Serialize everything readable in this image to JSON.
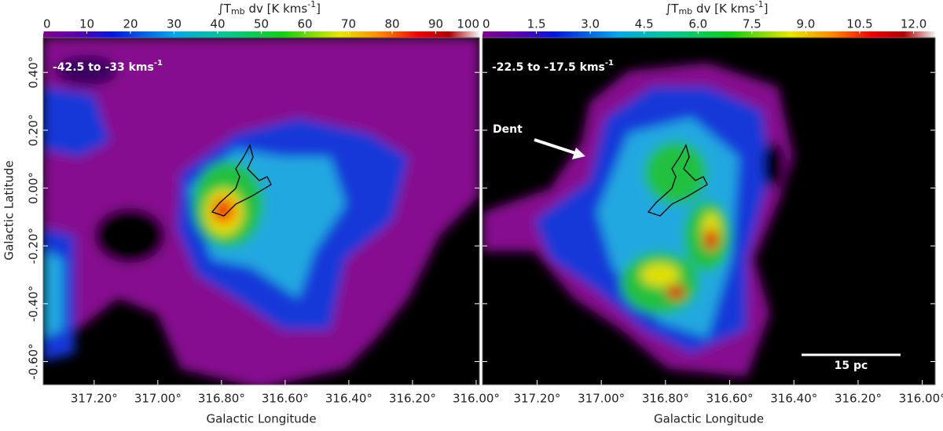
{
  "chart_data": [
    {
      "type": "heatmap",
      "xlabel": "Galactic Longitude",
      "ylabel": "Galactic Latitude",
      "xlim": [
        317.36,
        315.99
      ],
      "xticks": [
        {
          "value": 317.2,
          "label": "317.20°"
        },
        {
          "value": 317.0,
          "label": "317.00°"
        },
        {
          "value": 316.8,
          "label": "316.80°"
        },
        {
          "value": 316.6,
          "label": "316.60°"
        },
        {
          "value": 316.4,
          "label": "316.40°"
        },
        {
          "value": 316.2,
          "label": "316.20°"
        },
        {
          "value": 316.0,
          "label": "316.00°"
        }
      ],
      "ylim": [
        -0.68,
        0.52
      ],
      "yticks": [
        {
          "value": 0.4,
          "label": "0.40°"
        },
        {
          "value": 0.2,
          "label": "0.20°"
        },
        {
          "value": 0.0,
          "label": "0.00°"
        },
        {
          "value": -0.2,
          "label": "-0.20°"
        },
        {
          "value": -0.4,
          "label": "-0.40°"
        },
        {
          "value": -0.6,
          "label": "-0.60°"
        }
      ],
      "colorbar": {
        "label": {
          "base": "∫T",
          "sub": "mb",
          "text": " dv [K kms",
          "sup": "-1",
          "end": "]"
        },
        "lim": [
          0,
          100
        ],
        "ticks": [
          0,
          10,
          20,
          30,
          40,
          50,
          60,
          70,
          80,
          90,
          100
        ]
      },
      "annotation": {
        "text": "-42.5 to -33  kms",
        "sup": "-1"
      }
    },
    {
      "type": "heatmap",
      "xlabel": "Galactic Longitude",
      "xlim": [
        317.37,
        315.96
      ],
      "xticks": [
        {
          "value": 317.2,
          "label": "317.20°"
        },
        {
          "value": 317.0,
          "label": "317.00°"
        },
        {
          "value": 316.8,
          "label": "316.80°"
        },
        {
          "value": 316.6,
          "label": "316.60°"
        },
        {
          "value": 316.4,
          "label": "316.40°"
        },
        {
          "value": 316.2,
          "label": "316.20°"
        },
        {
          "value": 316.0,
          "label": "316.00°"
        }
      ],
      "ylim": [
        -0.68,
        0.52
      ],
      "colorbar": {
        "label": {
          "base": "∫T",
          "sub": "mb",
          "text": " dv [K kms",
          "sup": "-1",
          "end": "]"
        },
        "lim": [
          0,
          12.6
        ],
        "ticks": [
          0,
          1.5,
          {
            "value": 3,
            "label": "3.0"
          },
          4.5,
          {
            "value": 6,
            "label": "6.0"
          },
          7.5,
          {
            "value": 9,
            "label": "9.0"
          },
          10.5,
          {
            "value": 12,
            "label": "12.0"
          }
        ]
      },
      "annotation": {
        "text": "-22.5 to -17.5  kms",
        "sup": "-1"
      },
      "arrow_label": "Dent",
      "scale_bar": "15 pc"
    }
  ]
}
